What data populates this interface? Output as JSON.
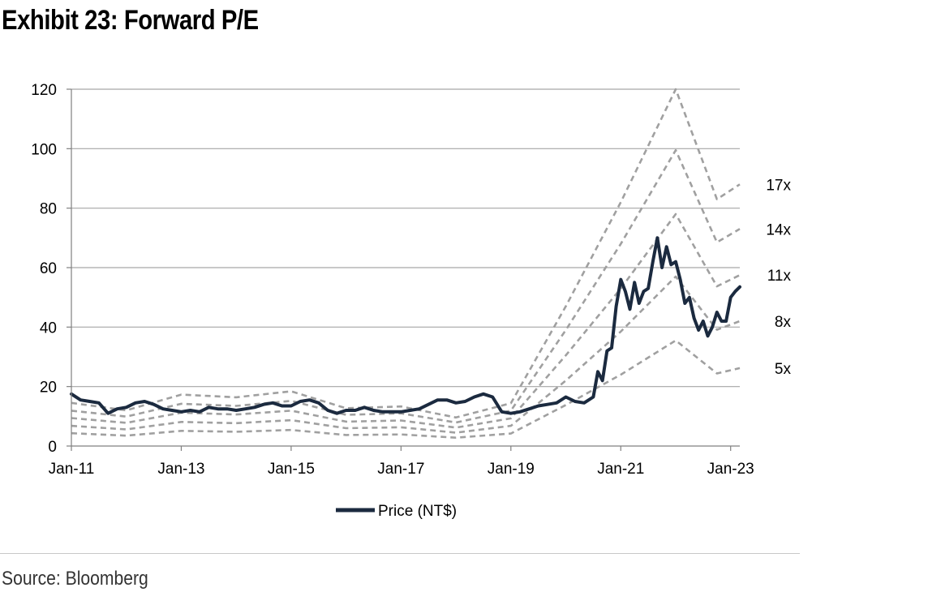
{
  "title": "Exhibit 23: Forward P/E",
  "source": "Source: Bloomberg",
  "chart_data": {
    "type": "line",
    "title": "Exhibit 23: Forward P/E",
    "xlabel": "",
    "ylabel": "",
    "ylim": [
      0,
      120
    ],
    "yticks": [
      0,
      20,
      40,
      60,
      80,
      100,
      120
    ],
    "xtick_labels": [
      "Jan-11",
      "Jan-13",
      "Jan-15",
      "Jan-17",
      "Jan-19",
      "Jan-21",
      "Jan-23"
    ],
    "xlim": [
      "2011-01",
      "2023-03"
    ],
    "grid": "horizontal",
    "legend": {
      "placement": "bottom",
      "entries": [
        "Price (NT$)"
      ]
    },
    "band_dates": [
      "2011-01",
      "2012-01",
      "2013-01",
      "2014-01",
      "2015-01",
      "2016-01",
      "2017-01",
      "2018-01",
      "2019-01",
      "2020-01",
      "2021-01",
      "2022-01",
      "2022-10",
      "2023-03"
    ],
    "bands": [
      {
        "name": "17x",
        "values": [
          14.5,
          12.0,
          17.3,
          16.4,
          18.4,
          12.7,
          13.3,
          9.6,
          14.4,
          47.0,
          82.0,
          120.0,
          83.0,
          88.0
        ]
      },
      {
        "name": "14x",
        "values": [
          11.9,
          9.9,
          14.2,
          13.5,
          15.2,
          10.5,
          11.0,
          7.9,
          11.9,
          39.0,
          68.0,
          99.5,
          68.5,
          73.0
        ]
      },
      {
        "name": "11x",
        "values": [
          9.4,
          7.8,
          11.2,
          10.6,
          11.9,
          8.2,
          8.6,
          6.2,
          9.3,
          30.5,
          53.0,
          78.0,
          53.7,
          57.5
        ]
      },
      {
        "name": "8x",
        "values": [
          6.8,
          5.6,
          8.1,
          7.7,
          8.7,
          6.0,
          6.3,
          4.5,
          6.8,
          22.0,
          38.5,
          57.0,
          39.1,
          42.0
        ]
      },
      {
        "name": "5x",
        "values": [
          4.3,
          3.5,
          5.1,
          4.8,
          5.4,
          3.7,
          3.9,
          2.8,
          4.2,
          13.8,
          24.0,
          35.5,
          24.4,
          26.2
        ]
      }
    ],
    "series": [
      {
        "name": "Price (NT$)",
        "color": "#1b2a3f",
        "x": [
          "2011-01",
          "2011-03",
          "2011-05",
          "2011-07",
          "2011-09",
          "2011-11",
          "2012-01",
          "2012-03",
          "2012-05",
          "2012-07",
          "2012-09",
          "2012-11",
          "2013-01",
          "2013-03",
          "2013-05",
          "2013-07",
          "2013-09",
          "2013-11",
          "2014-01",
          "2014-03",
          "2014-05",
          "2014-07",
          "2014-09",
          "2014-11",
          "2015-01",
          "2015-03",
          "2015-05",
          "2015-07",
          "2015-09",
          "2015-11",
          "2016-01",
          "2016-03",
          "2016-05",
          "2016-07",
          "2016-09",
          "2016-11",
          "2017-01",
          "2017-03",
          "2017-05",
          "2017-07",
          "2017-09",
          "2017-11",
          "2018-01",
          "2018-03",
          "2018-05",
          "2018-07",
          "2018-09",
          "2018-11",
          "2019-01",
          "2019-03",
          "2019-05",
          "2019-07",
          "2019-09",
          "2019-11",
          "2020-01",
          "2020-03",
          "2020-05",
          "2020-07",
          "2020-08",
          "2020-09",
          "2020-10",
          "2020-11",
          "2020-12",
          "2021-01",
          "2021-02",
          "2021-03",
          "2021-04",
          "2021-05",
          "2021-06",
          "2021-07",
          "2021-08",
          "2021-09",
          "2021-10",
          "2021-11",
          "2021-12",
          "2022-01",
          "2022-02",
          "2022-03",
          "2022-04",
          "2022-05",
          "2022-06",
          "2022-07",
          "2022-08",
          "2022-09",
          "2022-10",
          "2022-11",
          "2022-12",
          "2023-01",
          "2023-02",
          "2023-03"
        ],
        "values": [
          17.5,
          15.5,
          15.0,
          14.5,
          11.0,
          12.5,
          13.0,
          14.5,
          15.0,
          14.0,
          12.5,
          12.0,
          11.5,
          12.0,
          11.5,
          13.0,
          12.5,
          12.5,
          12.0,
          12.5,
          13.0,
          14.0,
          14.5,
          13.5,
          13.5,
          15.0,
          15.5,
          14.5,
          12.0,
          11.0,
          12.0,
          12.0,
          13.0,
          12.0,
          11.5,
          11.5,
          11.5,
          12.0,
          12.5,
          14.0,
          15.5,
          15.5,
          14.5,
          15.0,
          16.5,
          17.5,
          16.5,
          11.5,
          11.0,
          11.5,
          12.5,
          13.5,
          14.0,
          14.5,
          16.5,
          15.0,
          14.5,
          16.5,
          25.0,
          22.0,
          32.0,
          33.0,
          47.0,
          56.0,
          52.0,
          46.0,
          55.0,
          48.0,
          52.0,
          53.0,
          62.0,
          70.0,
          60.0,
          67.0,
          61.0,
          62.0,
          56.0,
          48.0,
          50.0,
          43.0,
          39.0,
          42.0,
          37.0,
          40.0,
          45.0,
          42.0,
          42.0,
          50.0,
          52.0,
          53.5
        ]
      }
    ]
  }
}
